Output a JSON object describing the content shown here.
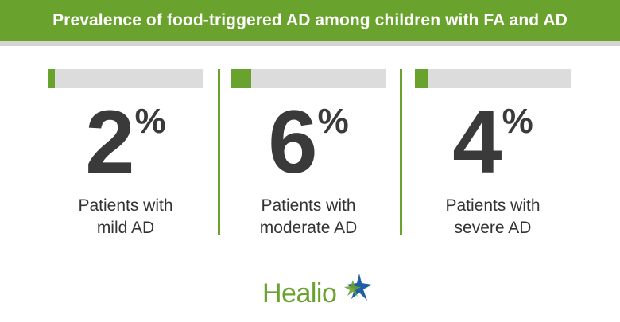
{
  "header": {
    "title": "Prevalence of food-triggered AD among children with FA and AD"
  },
  "colors": {
    "accent": "#6aa22e",
    "track": "#dcdcdc",
    "text": "#3a3a3a"
  },
  "stats": [
    {
      "value": "2",
      "unit": "%",
      "fraction": 0.02,
      "label_line1": "Patients with",
      "label_line2": "mild AD"
    },
    {
      "value": "6",
      "unit": "%",
      "fraction": 0.06,
      "label_line1": "Patients with",
      "label_line2": "moderate AD"
    },
    {
      "value": "4",
      "unit": "%",
      "fraction": 0.04,
      "label_line1": "Patients with",
      "label_line2": "severe AD"
    }
  ],
  "logo": {
    "text": "Healio",
    "icon": "star-icon"
  }
}
